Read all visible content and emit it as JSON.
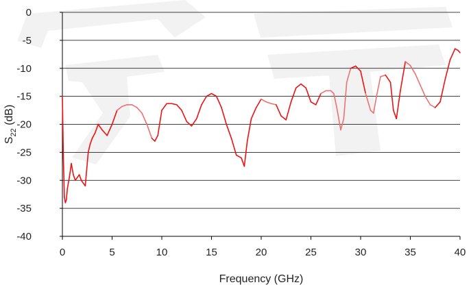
{
  "chart_data": {
    "type": "line",
    "title": "",
    "xlabel": "Frequency (GHz)",
    "ylabel": {
      "base": "S",
      "sub": "22",
      "rest": " (dB)"
    },
    "xlim": [
      0,
      40
    ],
    "ylim": [
      -40,
      0
    ],
    "xticks": [
      0,
      5,
      10,
      15,
      20,
      25,
      30,
      35,
      40
    ],
    "yticks": [
      0,
      -5,
      -10,
      -15,
      -20,
      -25,
      -30,
      -35,
      -40
    ],
    "grid": {
      "horizontal": true,
      "vertical": false
    },
    "legend": "none",
    "colors": {
      "line": "#ee1111",
      "line_light": "#ee7070",
      "grid": "#000000",
      "watermark": "#e6e6e6"
    },
    "series": [
      {
        "x": [
          0,
          0.1,
          0.2,
          0.3,
          0.4,
          0.5,
          0.7,
          0.9,
          1.1,
          1.3,
          1.5,
          1.7,
          1.9,
          2.1,
          2.3,
          2.5,
          2.6,
          2.8,
          3.0,
          3.3,
          3.6,
          4.0,
          4.5,
          5.0,
          5.5,
          6.0,
          6.5,
          7.0,
          7.5,
          8.0,
          8.5,
          9.0,
          9.3,
          9.6,
          10.0,
          10.5,
          11.0,
          11.5,
          12.0,
          12.5,
          13.0,
          13.5,
          14.0,
          14.5,
          15.0,
          15.5,
          16.0,
          16.5,
          17.0,
          17.5,
          18.0,
          18.3,
          18.6,
          19.0,
          19.5,
          20.0,
          20.5,
          21.0,
          21.5,
          22.0,
          22.5,
          23.0,
          23.5,
          24.0,
          24.5,
          25.0,
          25.5,
          26.0,
          26.5,
          27.0,
          27.3,
          27.6,
          28.0,
          28.3,
          28.6,
          29.0,
          29.5,
          30.0,
          30.5,
          31.0,
          31.3,
          31.6,
          32.0,
          32.5,
          33.0,
          33.3,
          33.6,
          34.0,
          34.5,
          35.0,
          35.5,
          36.0,
          36.5,
          37.0,
          37.5,
          38.0,
          38.5,
          39.0,
          39.5,
          39.8,
          40.0
        ],
        "y": [
          -15,
          -26,
          -33,
          -34,
          -33.5,
          -31.5,
          -29.5,
          -27,
          -29,
          -30,
          -29.5,
          -29,
          -30,
          -30.5,
          -31,
          -27,
          -25,
          -23.5,
          -22.5,
          -21.5,
          -20,
          -21,
          -22,
          -20,
          -17.5,
          -16.8,
          -16.5,
          -16.5,
          -17,
          -18,
          -20,
          -22.5,
          -23,
          -22,
          -17.5,
          -16.3,
          -16.3,
          -16.5,
          -17.5,
          -19.5,
          -20.3,
          -19,
          -16.5,
          -15,
          -14.5,
          -15,
          -17,
          -20,
          -22.5,
          -25.5,
          -26,
          -27.5,
          -23,
          -19,
          -17,
          -15.5,
          -16,
          -16.3,
          -16.5,
          -18.5,
          -19.2,
          -16,
          -13.5,
          -12.8,
          -13.5,
          -16,
          -16.5,
          -14.5,
          -14,
          -14,
          -14.5,
          -17,
          -21,
          -19,
          -12.5,
          -10,
          -9.6,
          -10.5,
          -14.5,
          -17.5,
          -18,
          -15,
          -11.5,
          -11.2,
          -12.5,
          -17.5,
          -19,
          -14,
          -8.8,
          -9.5,
          -11,
          -13,
          -15,
          -16.5,
          -17,
          -16,
          -12,
          -8.5,
          -6.5,
          -6.8,
          -7.2
        ]
      }
    ]
  }
}
